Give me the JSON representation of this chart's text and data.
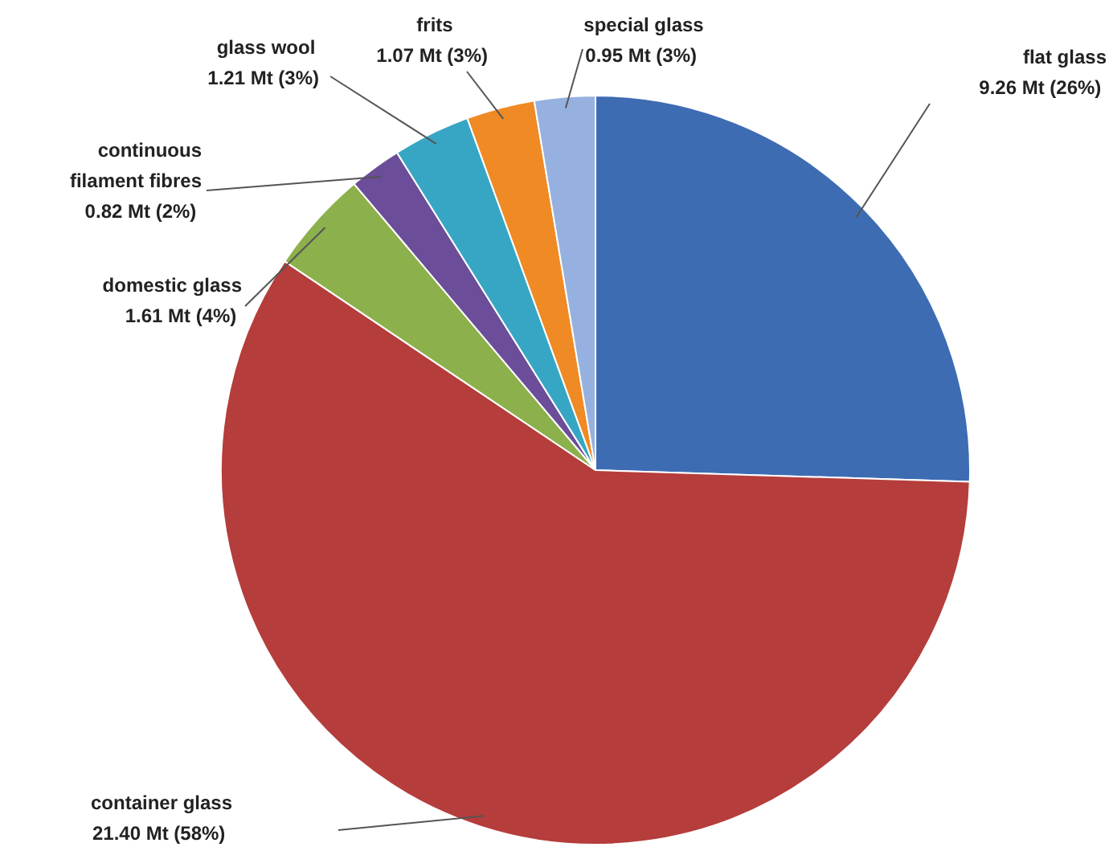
{
  "chart_data": {
    "type": "pie",
    "categories": [
      "flat glass",
      "container glass",
      "domestic glass",
      "continuous filament fibres",
      "glass wool",
      "frits",
      "special glass"
    ],
    "values": [
      9.26,
      21.4,
      1.61,
      0.82,
      1.21,
      1.07,
      0.95
    ],
    "colors": [
      "#3d6cb3",
      "#b53d3b",
      "#8cb04b",
      "#6b4d99",
      "#37a6c4",
      "#ef8a25",
      "#96b1df"
    ],
    "value_labels": [
      "9.26 Mt  (26%)",
      "21.40 Mt  (58%)",
      "1.61 Mt  (4%)",
      "0.82 Mt  (2%)",
      "1.21 Mt  (3%)",
      "1.07 Mt  (3%)",
      "0.95 Mt  (3%)"
    ]
  }
}
